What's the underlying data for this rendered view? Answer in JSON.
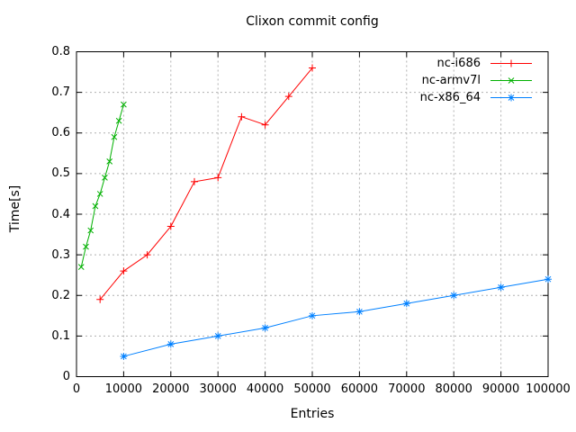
{
  "chart_data": {
    "type": "line",
    "title": "Clixon commit config",
    "xlabel": "Entries",
    "ylabel": "Time[s]",
    "xlim": [
      0,
      100000
    ],
    "ylim": [
      0,
      0.8
    ],
    "xtick_values": [
      0,
      10000,
      20000,
      30000,
      40000,
      50000,
      60000,
      70000,
      80000,
      90000,
      100000
    ],
    "xtick_labels": [
      "0",
      "10000",
      "20000",
      "30000",
      "40000",
      "50000",
      "60000",
      "70000",
      "80000",
      "90000",
      "100000"
    ],
    "ytick_values": [
      0,
      0.1,
      0.2,
      0.3,
      0.4,
      0.5,
      0.6,
      0.7,
      0.8
    ],
    "ytick_labels": [
      "0",
      "0.1",
      "0.2",
      "0.3",
      "0.4",
      "0.5",
      "0.6",
      "0.7",
      "0.8"
    ],
    "grid": true,
    "legend_position": "top-right-inside",
    "background_color": "#ffffff",
    "grid_color": "#b0b0b0",
    "series": [
      {
        "name": "nc-i686",
        "color": "#ff0000",
        "marker": "plus",
        "x": [
          5000,
          10000,
          15000,
          20000,
          25000,
          30000,
          35000,
          40000,
          45000,
          50000
        ],
        "y": [
          0.19,
          0.26,
          0.3,
          0.37,
          0.48,
          0.49,
          0.64,
          0.62,
          0.69,
          0.76
        ]
      },
      {
        "name": "nc-armv7l",
        "color": "#00b000",
        "marker": "cross",
        "x": [
          1000,
          2000,
          3000,
          4000,
          5000,
          6000,
          7000,
          8000,
          9000,
          10000
        ],
        "y": [
          0.27,
          0.32,
          0.36,
          0.42,
          0.45,
          0.49,
          0.53,
          0.59,
          0.63,
          0.67
        ]
      },
      {
        "name": "nc-x86_64",
        "color": "#0080ff",
        "marker": "asterisk",
        "x": [
          10000,
          20000,
          30000,
          40000,
          50000,
          60000,
          70000,
          80000,
          90000,
          100000
        ],
        "y": [
          0.05,
          0.08,
          0.1,
          0.12,
          0.15,
          0.16,
          0.18,
          0.2,
          0.22,
          0.24
        ]
      }
    ]
  }
}
